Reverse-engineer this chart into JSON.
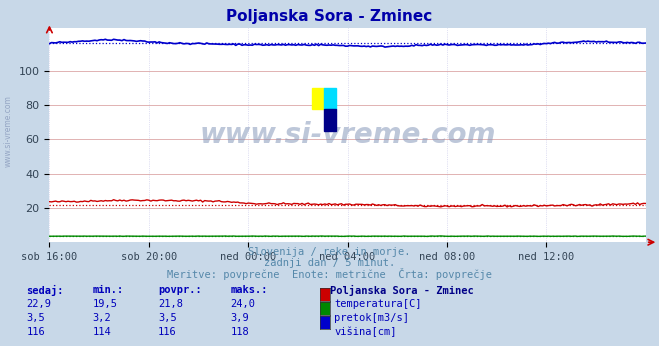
{
  "title": "Poljanska Sora - Zminec",
  "title_color": "#0000aa",
  "bg_color": "#c8d8e8",
  "plot_bg_color": "#ffffff",
  "grid_color": "#ddaaaa",
  "grid_color2": "#aaaadd",
  "xlabel_ticks": [
    "sob 16:00",
    "sob 20:00",
    "ned 00:00",
    "ned 04:00",
    "ned 08:00",
    "ned 12:00"
  ],
  "yticks": [
    20,
    40,
    60,
    80,
    100
  ],
  "ylim": [
    0,
    125
  ],
  "xlim": [
    0,
    288
  ],
  "n_points": 289,
  "temp_avg": 21.8,
  "pretok_avg": 3.5,
  "visina_avg": 116,
  "temp_color": "#cc0000",
  "pretok_color": "#008800",
  "visina_color": "#0000cc",
  "watermark_text": "www.si-vreme.com",
  "watermark_color": "#8899bb",
  "sub_text1": "Slovenija / reke in morje.",
  "sub_text2": "zadnji dan / 5 minut.",
  "sub_text3": "Meritve: povprečne  Enote: metrične  Črta: povprečje",
  "sub_text_color": "#5588aa",
  "legend_title": "Poljanska Sora - Zminec",
  "legend_title_color": "#000088",
  "table_headers": [
    "sedaj:",
    "min.:",
    "povpr.:",
    "maks.:"
  ],
  "table_color": "#0000bb",
  "rows": [
    [
      "22,9",
      "19,5",
      "21,8",
      "24,0"
    ],
    [
      "3,5",
      "3,2",
      "3,5",
      "3,9"
    ],
    [
      "116",
      "114",
      "116",
      "118"
    ]
  ],
  "legend_labels": [
    "temperatura[C]",
    "pretok[m3/s]",
    "višina[cm]"
  ],
  "legend_colors": [
    "#cc0000",
    "#008800",
    "#0000cc"
  ],
  "sidebar_text": "www.si-vreme.com",
  "sidebar_color": "#8899bb",
  "logo_colors": [
    "#ffff00",
    "#00ccff",
    "#000088"
  ]
}
